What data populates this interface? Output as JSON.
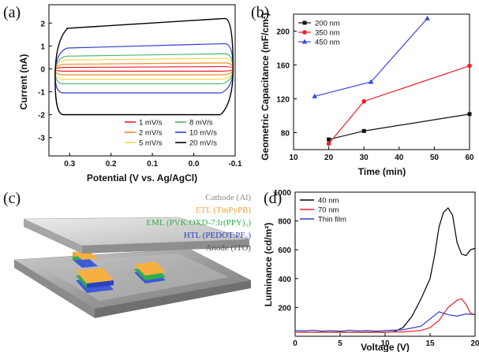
{
  "panels": [
    {
      "id": "a",
      "label": "(a)"
    },
    {
      "id": "b",
      "label": "(b)"
    },
    {
      "id": "c",
      "label": "(c)"
    },
    {
      "id": "d",
      "label": "(d)"
    }
  ],
  "device_layers": [
    {
      "text": "Cathode (Al)",
      "color": "#8a8a8a"
    },
    {
      "text": "ETL (TmPyPB)",
      "color": "#f0a030"
    },
    {
      "text": "EML (PVK:OXD-7:Ir(PPY)₃)",
      "color": "#2fae4a"
    },
    {
      "text": "HTL (PEDOT:PF₆)",
      "color": "#2a3fc0"
    },
    {
      "text": "Anode (ITO)",
      "color": "#555555"
    }
  ],
  "chart_data": [
    {
      "type": "line",
      "panel": "a",
      "title": "",
      "xlabel": "Potential (V vs. Ag/AgCl)",
      "ylabel": "Current (nA)",
      "xlim": [
        0.35,
        -0.1
      ],
      "ylim": [
        -3.8,
        2.8
      ],
      "xticks": [
        "0.3",
        "0.2",
        "0.1",
        "0.0",
        "-0.1"
      ],
      "yticks": [
        "2",
        "1",
        "0",
        "-1",
        "-2",
        "-3"
      ],
      "series": [
        {
          "name": "1 mV/s",
          "color": "#e8202a",
          "upper_left": 0.06,
          "upper_right": 0.1,
          "lower": -0.1
        },
        {
          "name": "2 mV/s",
          "color": "#f28a1e",
          "upper_left": 0.2,
          "upper_right": 0.26,
          "lower": -0.26
        },
        {
          "name": "5 mV/s",
          "color": "#f7d64a",
          "upper_left": 0.38,
          "upper_right": 0.46,
          "lower": -0.45
        },
        {
          "name": "8 mV/s",
          "color": "#4cb86a",
          "upper_left": 0.55,
          "upper_right": 0.66,
          "lower": -0.65
        },
        {
          "name": "10 mV/s",
          "color": "#2f3fc4",
          "upper_left": 0.9,
          "upper_right": 1.1,
          "lower": -1.05
        },
        {
          "name": "20 mV/s",
          "color": "#000000",
          "upper_left": 1.75,
          "upper_right": 2.2,
          "lower": -2.0
        }
      ]
    },
    {
      "type": "line",
      "panel": "b",
      "title": "",
      "xlabel": "Time (min)",
      "ylabel": "Geometric Capacitance (mF/cm²)",
      "xlim": [
        10,
        60
      ],
      "ylim": [
        60,
        220
      ],
      "xticks": [
        "10",
        "20",
        "30",
        "40",
        "50",
        "60"
      ],
      "yticks": [
        "80",
        "120",
        "160",
        "200"
      ],
      "series": [
        {
          "name": "200 nm",
          "color": "#111111",
          "marker": "square",
          "x": [
            20,
            30,
            60
          ],
          "y": [
            72,
            82,
            102
          ]
        },
        {
          "name": "350 nm",
          "color": "#e8202a",
          "marker": "circle",
          "x": [
            20,
            30,
            60
          ],
          "y": [
            67,
            117,
            159
          ]
        },
        {
          "name": "450 nm",
          "color": "#3a48d8",
          "marker": "triangle",
          "x": [
            16,
            32,
            48
          ],
          "y": [
            123,
            140,
            215
          ]
        }
      ]
    },
    {
      "type": "line",
      "panel": "d",
      "title": "",
      "xlabel": "Voltage (V)",
      "ylabel": "Luminance (cd/m²)",
      "xlim": [
        0,
        20
      ],
      "ylim": [
        0,
        1000
      ],
      "xticks": [
        "0",
        "5",
        "10",
        "15",
        "20"
      ],
      "yticks": [
        "200",
        "400",
        "600",
        "800",
        "1000"
      ],
      "series": [
        {
          "name": "40 nm",
          "color": "#000000",
          "x": [
            0,
            10,
            11,
            12,
            13,
            14,
            15,
            15.5,
            16,
            16.5,
            17,
            17.5,
            18,
            18.5,
            19,
            19.5,
            20
          ],
          "y": [
            28,
            28,
            32,
            60,
            140,
            260,
            400,
            560,
            760,
            860,
            890,
            840,
            650,
            570,
            560,
            600,
            610
          ]
        },
        {
          "name": "70 nm",
          "color": "#e8202a",
          "x": [
            0,
            12,
            14,
            15,
            16,
            17,
            18,
            18.5,
            19,
            19.5,
            20
          ],
          "y": [
            28,
            30,
            40,
            60,
            110,
            200,
            250,
            260,
            220,
            160,
            150
          ]
        },
        {
          "name": "Thin film",
          "color": "#2f3fc4",
          "x": [
            0,
            1,
            2,
            3,
            4,
            5,
            6,
            7,
            8,
            9,
            10,
            12,
            14,
            15,
            16,
            17,
            18,
            19,
            20
          ],
          "y": [
            40,
            38,
            42,
            36,
            40,
            35,
            42,
            38,
            40,
            36,
            40,
            45,
            70,
            120,
            170,
            150,
            140,
            155,
            150
          ]
        }
      ]
    }
  ]
}
